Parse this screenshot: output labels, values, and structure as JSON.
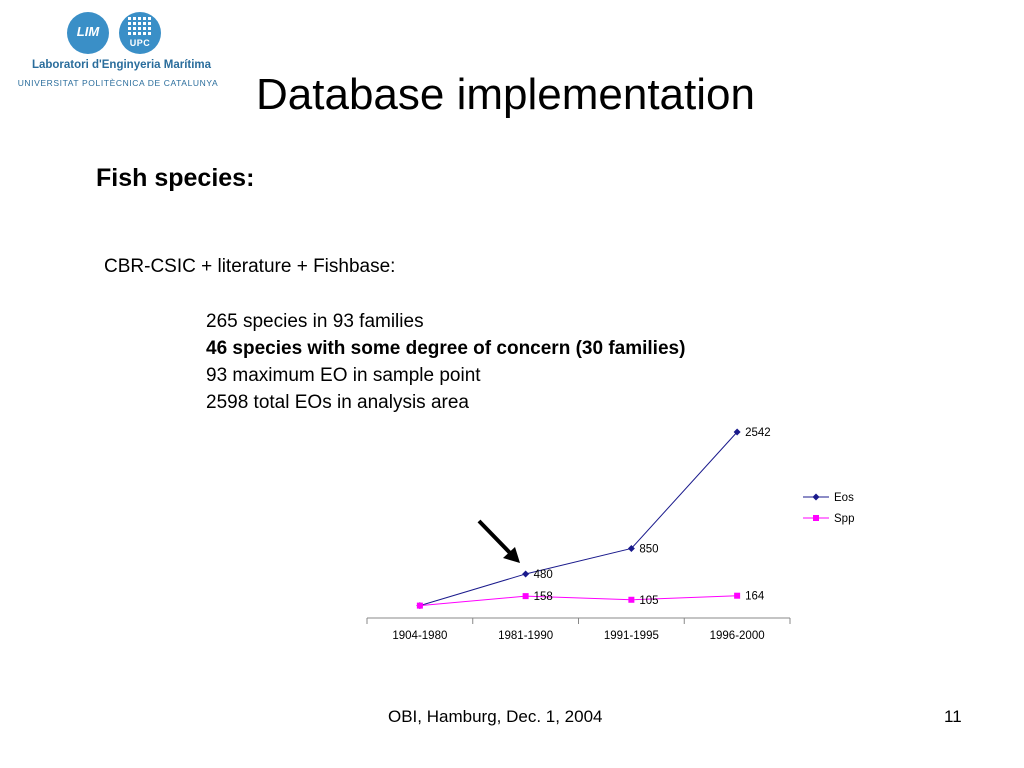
{
  "logos": {
    "lim_text": "LIM",
    "upc_text": "UPC",
    "lab_name": "Laboratori d'Enginyeria Marítima",
    "university": "UNIVERSITAT POLITÈCNICA DE CATALUNYA",
    "color": "#2a6d9c"
  },
  "slide": {
    "title": "Database implementation",
    "subtitle": "Fish species:",
    "source": "CBR-CSIC + literature + Fishbase:",
    "bullets": [
      "265 species in 93 families",
      "46 species with some degree of concern (30 families)",
      "93 maximum EO in sample point",
      "2598 total EOs in analysis area"
    ],
    "footer": "OBI, Hamburg, Dec. 1, 2004",
    "page_number": "11"
  },
  "chart_data": {
    "type": "line",
    "categories": [
      "1904-1980",
      "1981-1990",
      "1991-1995",
      "1996-2000"
    ],
    "series": [
      {
        "name": "Eos",
        "values": [
          20,
          480,
          850,
          2542
        ],
        "labels": [
          "",
          "480",
          "850",
          "2542"
        ],
        "color": "#1a1a8c",
        "marker": "diamond"
      },
      {
        "name": "Spp",
        "values": [
          20,
          158,
          105,
          164
        ],
        "labels": [
          "",
          "158",
          "105",
          "164"
        ],
        "color": "#ff00ff",
        "marker": "square"
      }
    ],
    "ylim": [
      0,
      2542
    ],
    "legend": "right",
    "grid": false,
    "annotation": "arrow pointing to 1981-1990"
  }
}
